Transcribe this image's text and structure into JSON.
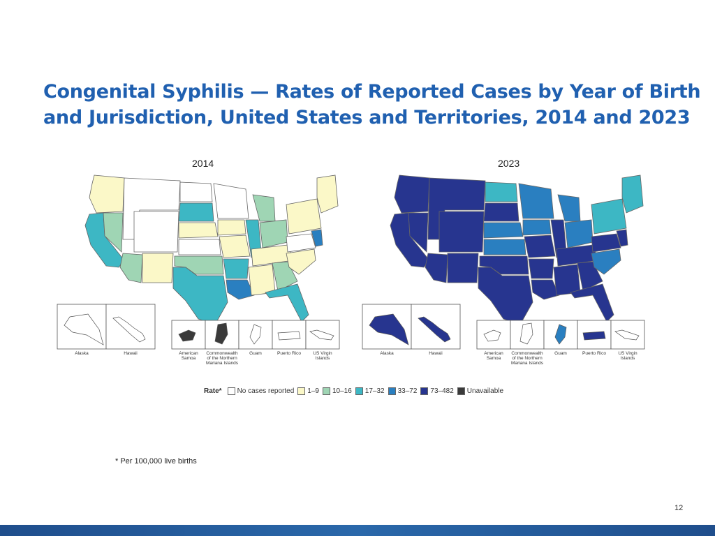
{
  "title": {
    "line1": "Congenital Syphilis — Rates of Reported Cases by Year of Birth",
    "line2": "and Jurisdiction, United States and Territories, 2014 and 2023"
  },
  "maps": [
    {
      "year": "2014",
      "regions": [
        {
          "name": "west-coast-north",
          "bin": 1
        },
        {
          "name": "california",
          "bin": 3
        },
        {
          "name": "nevada",
          "bin": 2
        },
        {
          "name": "arizona",
          "bin": 2
        },
        {
          "name": "idaho-montana-wyoming",
          "bin": 0
        },
        {
          "name": "utah-colorado",
          "bin": 0
        },
        {
          "name": "new-mexico",
          "bin": 1
        },
        {
          "name": "north-dakota",
          "bin": 0
        },
        {
          "name": "south-dakota",
          "bin": 3
        },
        {
          "name": "nebraska",
          "bin": 1
        },
        {
          "name": "kansas",
          "bin": 0
        },
        {
          "name": "oklahoma",
          "bin": 2
        },
        {
          "name": "texas",
          "bin": 3
        },
        {
          "name": "minnesota-wisconsin",
          "bin": 0
        },
        {
          "name": "iowa",
          "bin": 1
        },
        {
          "name": "missouri",
          "bin": 1
        },
        {
          "name": "arkansas",
          "bin": 3
        },
        {
          "name": "louisiana",
          "bin": 4
        },
        {
          "name": "illinois",
          "bin": 3
        },
        {
          "name": "michigan",
          "bin": 2
        },
        {
          "name": "indiana-ohio",
          "bin": 2
        },
        {
          "name": "kentucky-tennessee",
          "bin": 1
        },
        {
          "name": "mississippi-alabama",
          "bin": 1
        },
        {
          "name": "georgia",
          "bin": 2
        },
        {
          "name": "florida",
          "bin": 3
        },
        {
          "name": "carolinas",
          "bin": 1
        },
        {
          "name": "virginia-wv",
          "bin": 0
        },
        {
          "name": "maryland",
          "bin": 4
        },
        {
          "name": "pennsylvania-ny",
          "bin": 1
        },
        {
          "name": "new-england",
          "bin": 1
        }
      ],
      "insets": [
        {
          "label": "Alaska",
          "bin": 0
        },
        {
          "label": "Hawaii",
          "bin": 0
        },
        {
          "label": "American\nSamoa",
          "bin": 6
        },
        {
          "label": "Commonwealth\nof the Northern\nMariana Islands",
          "bin": 6
        },
        {
          "label": "Guam",
          "bin": 0
        },
        {
          "label": "Puerto Rico",
          "bin": 0
        },
        {
          "label": "US Virgin\nIslands",
          "bin": 0
        }
      ]
    },
    {
      "year": "2023",
      "regions": [
        {
          "name": "west-coast-north",
          "bin": 5
        },
        {
          "name": "california",
          "bin": 5
        },
        {
          "name": "nevada",
          "bin": 5
        },
        {
          "name": "arizona",
          "bin": 5
        },
        {
          "name": "idaho-montana-wyoming",
          "bin": 5
        },
        {
          "name": "utah-colorado",
          "bin": 5
        },
        {
          "name": "new-mexico",
          "bin": 5
        },
        {
          "name": "north-dakota",
          "bin": 3
        },
        {
          "name": "south-dakota",
          "bin": 5
        },
        {
          "name": "nebraska",
          "bin": 4
        },
        {
          "name": "kansas",
          "bin": 4
        },
        {
          "name": "oklahoma",
          "bin": 5
        },
        {
          "name": "texas",
          "bin": 5
        },
        {
          "name": "minnesota-wisconsin",
          "bin": 4
        },
        {
          "name": "iowa",
          "bin": 4
        },
        {
          "name": "missouri",
          "bin": 5
        },
        {
          "name": "arkansas",
          "bin": 5
        },
        {
          "name": "louisiana",
          "bin": 5
        },
        {
          "name": "illinois",
          "bin": 5
        },
        {
          "name": "michigan",
          "bin": 4
        },
        {
          "name": "indiana-ohio",
          "bin": 4
        },
        {
          "name": "kentucky-tennessee",
          "bin": 5
        },
        {
          "name": "mississippi-alabama",
          "bin": 5
        },
        {
          "name": "georgia",
          "bin": 5
        },
        {
          "name": "florida",
          "bin": 5
        },
        {
          "name": "carolinas",
          "bin": 4
        },
        {
          "name": "virginia-wv",
          "bin": 5
        },
        {
          "name": "maryland",
          "bin": 5
        },
        {
          "name": "pennsylvania-ny",
          "bin": 3
        },
        {
          "name": "new-england",
          "bin": 3
        }
      ],
      "insets": [
        {
          "label": "Alaska",
          "bin": 5
        },
        {
          "label": "Hawaii",
          "bin": 5
        },
        {
          "label": "American\nSamoa",
          "bin": 0
        },
        {
          "label": "Commonwealth\nof the Northern\nMariana Islands",
          "bin": 0
        },
        {
          "label": "Guam",
          "bin": 4
        },
        {
          "label": "Puerto Rico",
          "bin": 5
        },
        {
          "label": "US Virgin\nIslands",
          "bin": 0
        }
      ]
    }
  ],
  "legend": {
    "title": "Rate*",
    "items": [
      {
        "label": "No cases reported",
        "color": "#ffffff"
      },
      {
        "label": "1–9",
        "color": "#fbf8c8"
      },
      {
        "label": "10–16",
        "color": "#9fd5b4"
      },
      {
        "label": "17–32",
        "color": "#3db7c4"
      },
      {
        "label": "33–72",
        "color": "#2a7fc0"
      },
      {
        "label": "73–482",
        "color": "#27358f"
      },
      {
        "label": "Unavailable",
        "color": "#3a3a3a"
      }
    ]
  },
  "footnote": "* Per 100,000 live births",
  "page_number": "12"
}
